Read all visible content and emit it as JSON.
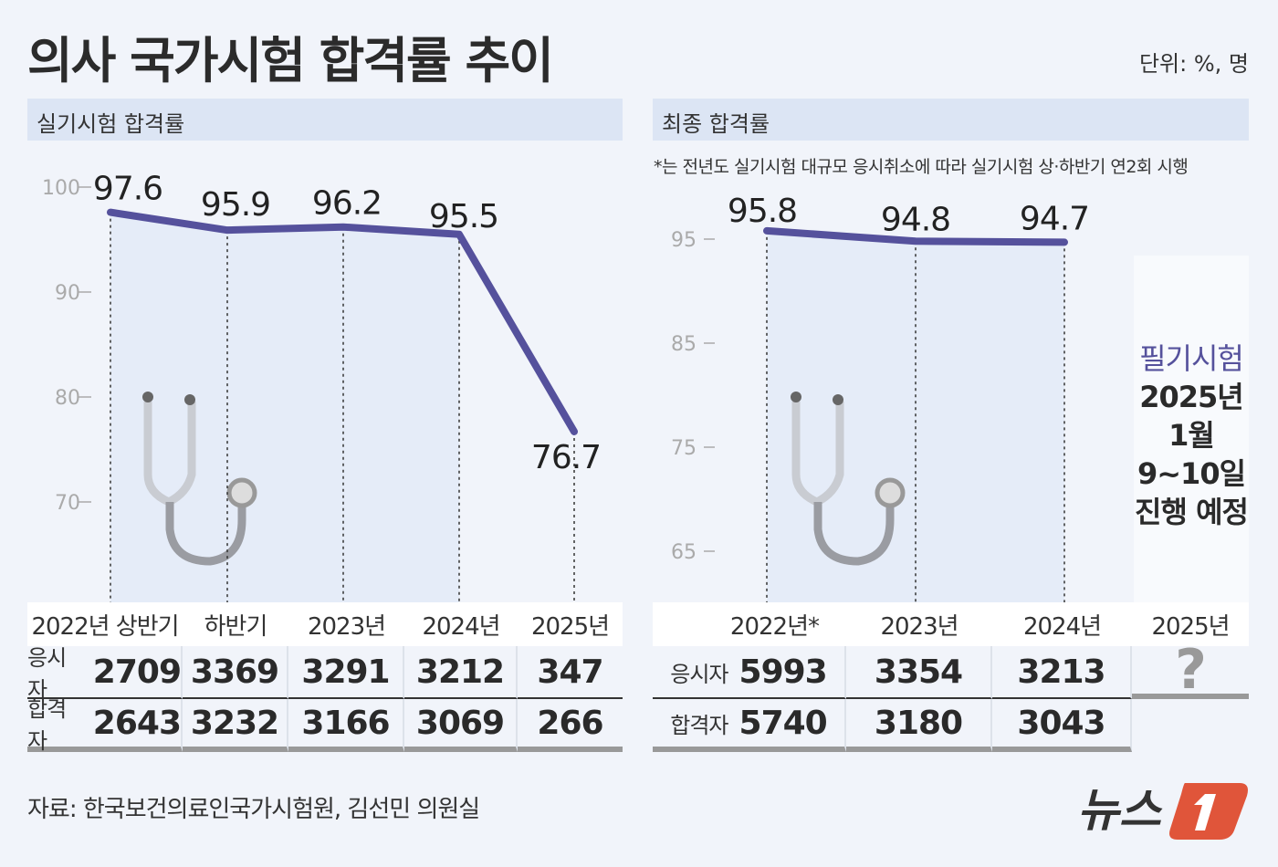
{
  "title": "의사 국가시험 합격률 추이",
  "unit": "단위: %, 명",
  "note": "*는 전년도 실기시험 대규모 응시취소에 따라 실기시험 상·하반기 연2회 시행",
  "source": "자료: 한국보건의료인국가시험원, 김선민 의원실",
  "logo": "뉴스1",
  "colors": {
    "line": "#55519c",
    "panel_header": "#dce5f4",
    "area": "#e5ecf8",
    "logo": "#e0553a"
  },
  "icons": [
    "stethoscope-icon"
  ],
  "chart_data": [
    {
      "type": "line",
      "title": "실기시험 합격률",
      "categories": [
        "2022년 상반기",
        "하반기",
        "2023년",
        "2024년",
        "2025년"
      ],
      "values": [
        97.6,
        95.9,
        96.2,
        95.5,
        76.7
      ],
      "yticks": [
        100,
        90,
        80,
        70
      ],
      "ylim": [
        68,
        100
      ],
      "grid": false,
      "table": {
        "rows": [
          {
            "label": "응시자",
            "values": [
              "2709",
              "3369",
              "3291",
              "3212",
              "347"
            ]
          },
          {
            "label": "합격자",
            "values": [
              "2643",
              "3232",
              "3166",
              "3069",
              "266"
            ]
          }
        ]
      }
    },
    {
      "type": "line",
      "title": "최종 합격률",
      "categories": [
        "2022년*",
        "2023년",
        "2024년",
        "2025년"
      ],
      "values": [
        95.8,
        94.8,
        94.7,
        null
      ],
      "yticks": [
        95,
        85,
        75,
        65
      ],
      "ylim": [
        60,
        96
      ],
      "grid": false,
      "pending": {
        "label": "필기시험",
        "lines": [
          "2025년",
          "1월",
          "9~10일",
          "진행 예정"
        ],
        "placeholder": "?"
      },
      "table": {
        "rows": [
          {
            "label": "응시자",
            "values": [
              "5993",
              "3354",
              "3213"
            ]
          },
          {
            "label": "합격자",
            "values": [
              "5740",
              "3180",
              "3043"
            ]
          }
        ]
      }
    }
  ]
}
